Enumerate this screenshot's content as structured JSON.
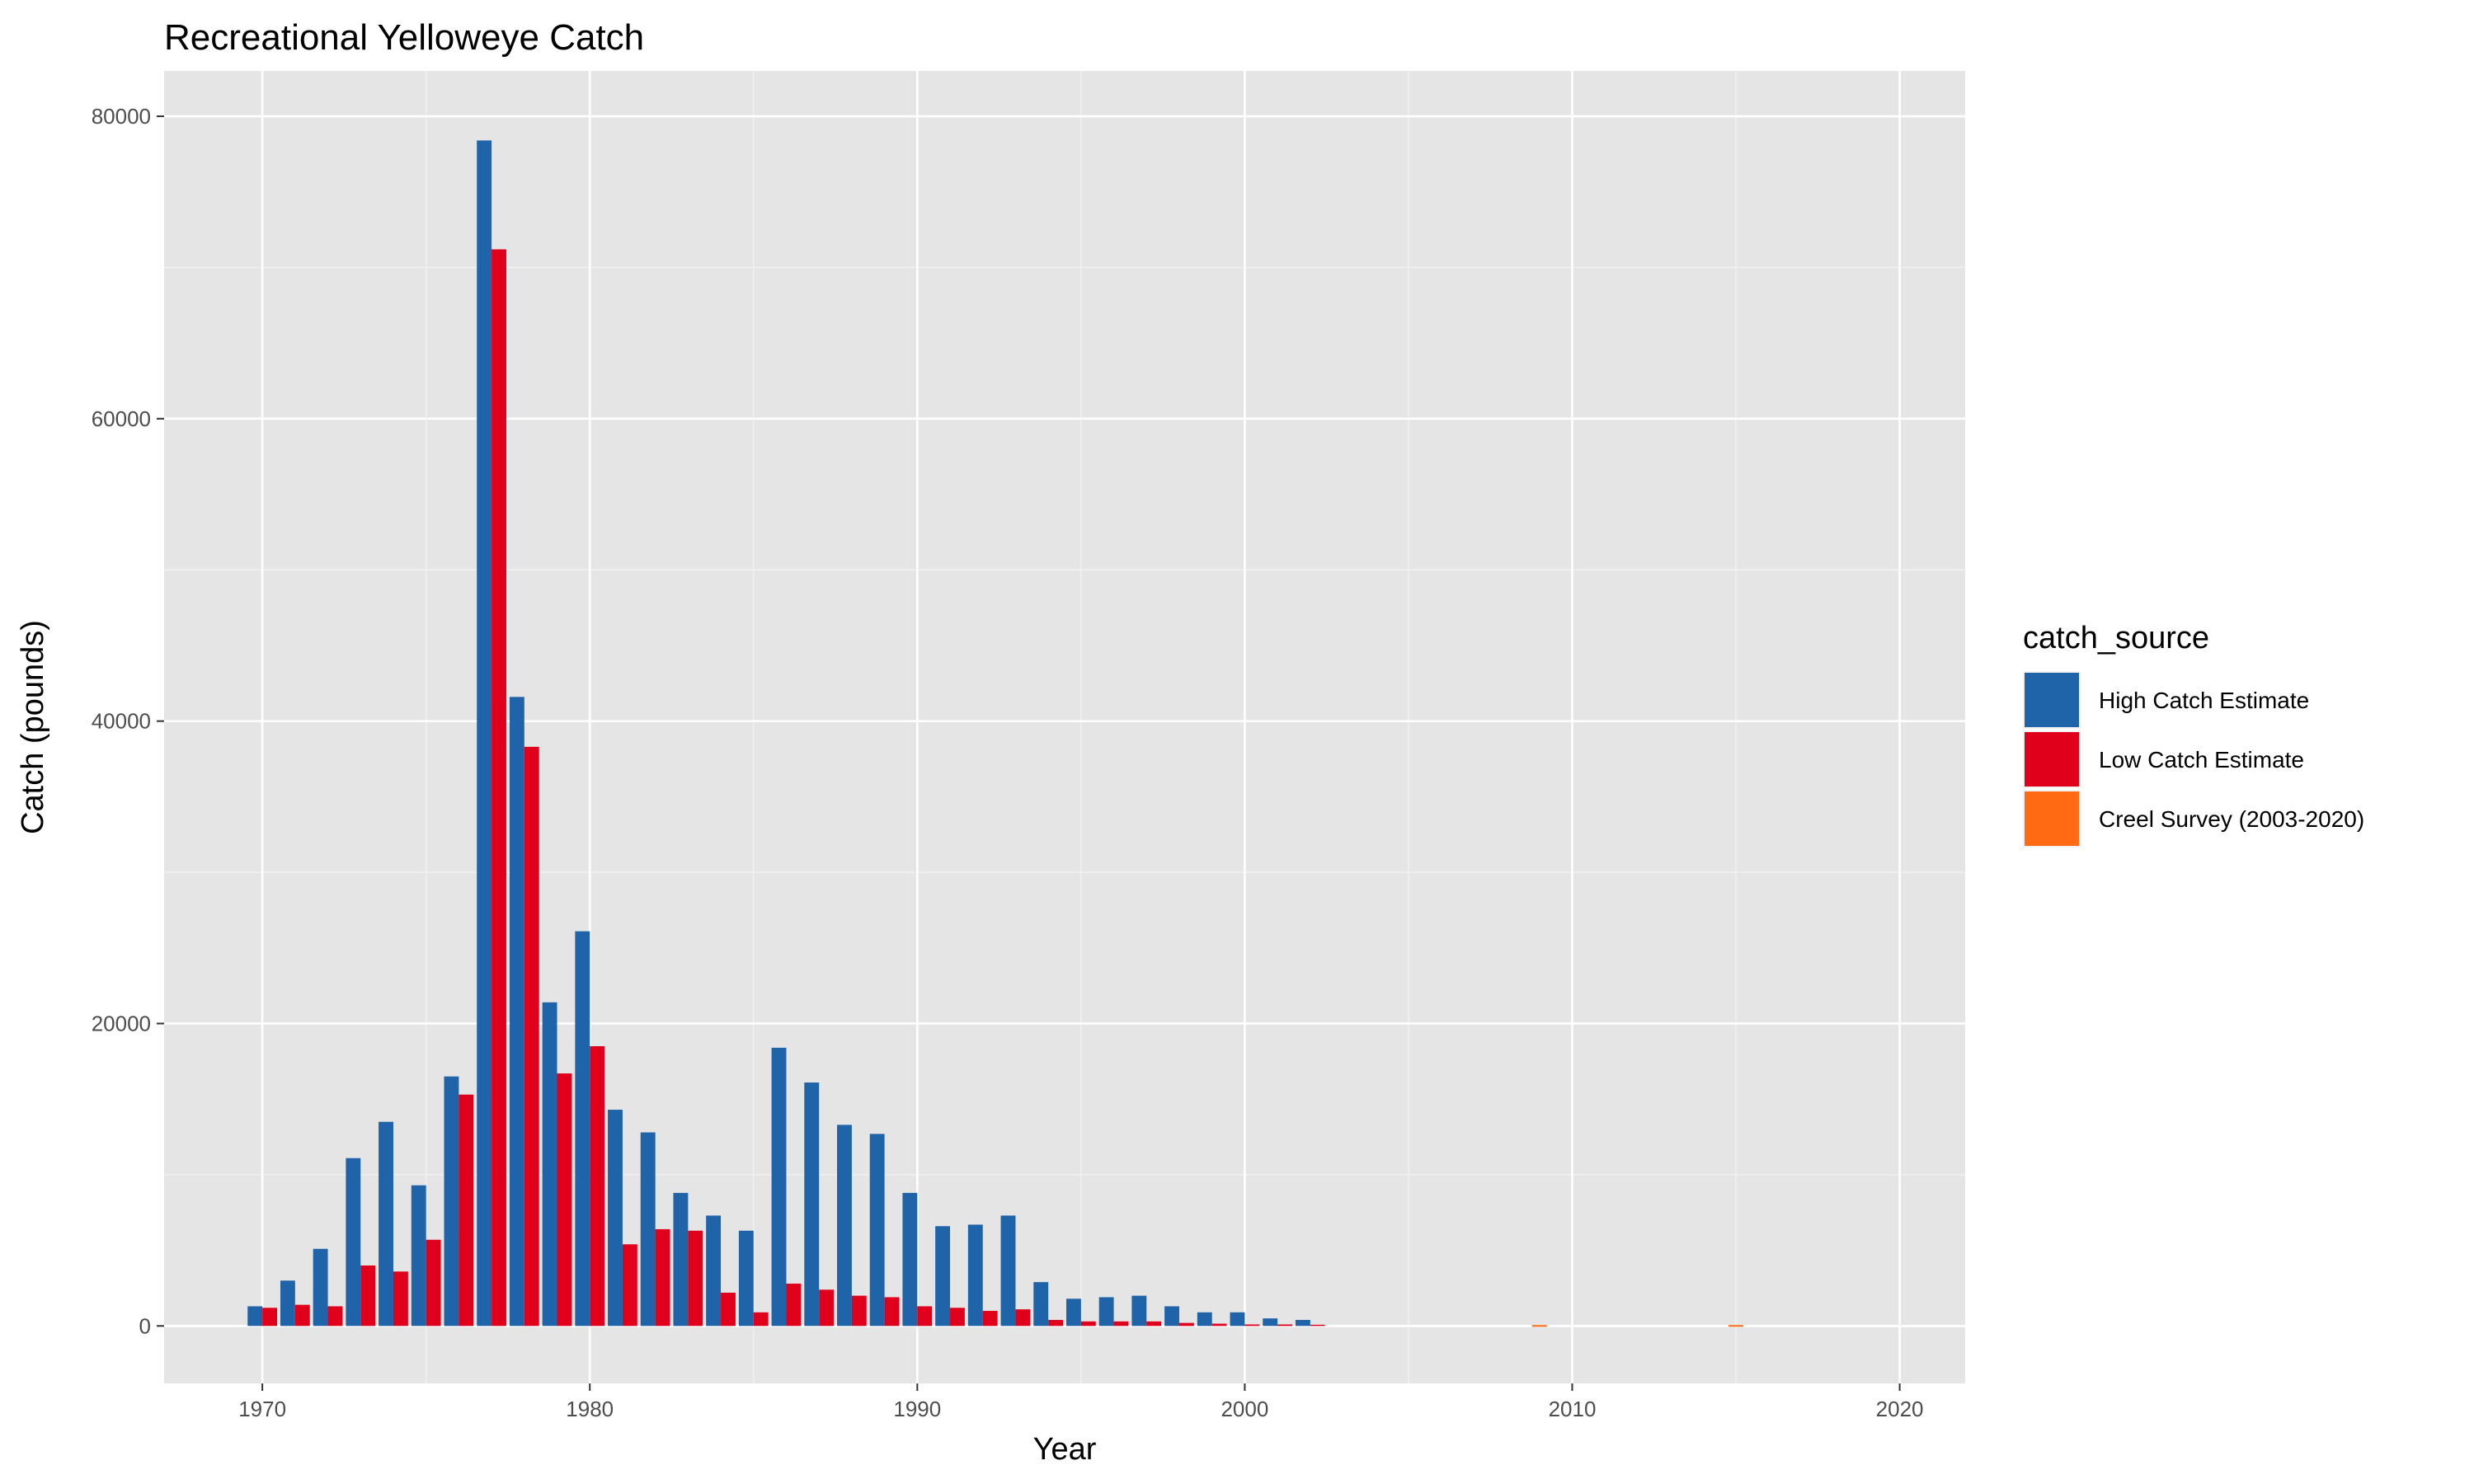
{
  "chart_data": {
    "type": "bar",
    "title": "Recreational Yelloweye Catch",
    "xlabel": "Year",
    "ylabel": "Catch (pounds)",
    "xlim": [
      1967,
      2022
    ],
    "ylim": [
      -3800,
      83000
    ],
    "x_ticks": [
      1970,
      1980,
      1990,
      2000,
      2010,
      2020
    ],
    "x_tick_labels": [
      "1970",
      "1980",
      "1990",
      "2000",
      "2010",
      "2020"
    ],
    "y_ticks": [
      0,
      20000,
      40000,
      60000,
      80000
    ],
    "y_tick_labels": [
      "0",
      "20000",
      "40000",
      "60000",
      "80000"
    ],
    "grid": true,
    "legend": {
      "title": "catch_source",
      "position": "right"
    },
    "series": [
      {
        "name": "High Catch Estimate",
        "color": "#1f63a8",
        "x": [
          1970,
          1971,
          1972,
          1973,
          1974,
          1975,
          1976,
          1977,
          1978,
          1979,
          1980,
          1981,
          1982,
          1983,
          1984,
          1985,
          1986,
          1987,
          1988,
          1989,
          1990,
          1991,
          1992,
          1993,
          1994,
          1995,
          1996,
          1997,
          1998,
          1999,
          2000,
          2001,
          2002
        ],
        "values": [
          1300,
          3000,
          5100,
          11100,
          13500,
          9300,
          16500,
          78400,
          41600,
          21400,
          26100,
          14300,
          12800,
          8800,
          7300,
          6300,
          18400,
          16100,
          13300,
          12700,
          8800,
          6600,
          6700,
          7300,
          2900,
          1800,
          1900,
          2000,
          1300,
          900,
          900,
          500,
          400
        ]
      },
      {
        "name": "Low Catch Estimate",
        "color": "#e0001b",
        "x": [
          1970,
          1971,
          1972,
          1973,
          1974,
          1975,
          1976,
          1977,
          1978,
          1979,
          1980,
          1981,
          1982,
          1983,
          1984,
          1985,
          1986,
          1987,
          1988,
          1989,
          1990,
          1991,
          1992,
          1993,
          1994,
          1995,
          1996,
          1997,
          1998,
          1999,
          2000,
          2001,
          2002
        ],
        "values": [
          1200,
          1400,
          1300,
          4000,
          3600,
          5700,
          15300,
          71200,
          38300,
          16700,
          18500,
          5400,
          6400,
          6300,
          2200,
          900,
          2800,
          2400,
          2000,
          1900,
          1300,
          1200,
          1000,
          1100,
          400,
          300,
          300,
          300,
          200,
          150,
          100,
          100,
          80
        ]
      },
      {
        "name": "Creel Survey (2003-2020)",
        "color": "#ff6a13",
        "x": [
          2009,
          2015
        ],
        "values": [
          60,
          60
        ]
      }
    ]
  }
}
